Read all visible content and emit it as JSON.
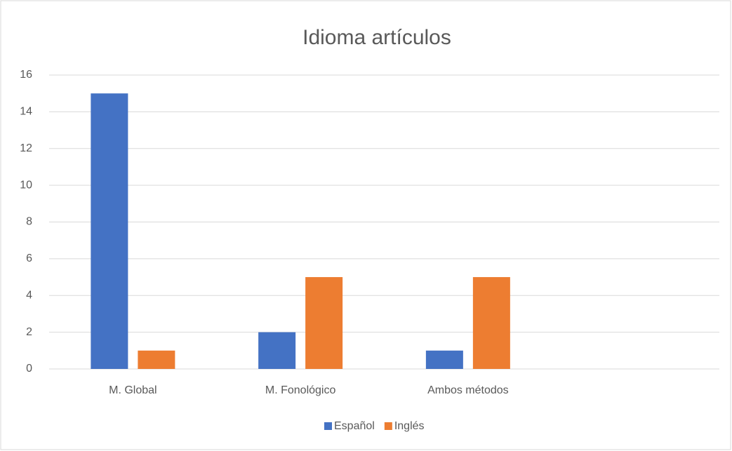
{
  "chart_data": {
    "type": "bar",
    "title": "Idioma artículos",
    "categories": [
      "M. Global",
      "M. Fonológico",
      "Ambos métodos",
      null
    ],
    "series": [
      {
        "name": "Español",
        "color": "#4472c4",
        "values": [
          15,
          2,
          1,
          null
        ]
      },
      {
        "name": "Inglés",
        "color": "#ed7d31",
        "values": [
          1,
          5,
          5,
          null
        ]
      }
    ],
    "ylim": [
      0,
      16
    ],
    "yticks": [
      0,
      2,
      4,
      6,
      8,
      10,
      12,
      14,
      16
    ],
    "grid": true,
    "legend": "bottom"
  }
}
